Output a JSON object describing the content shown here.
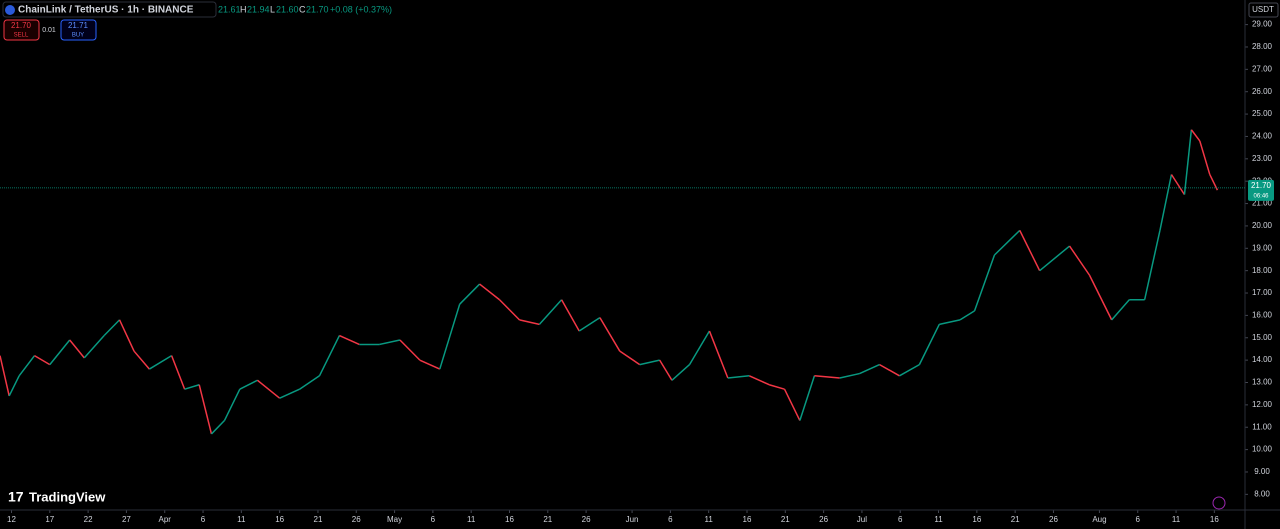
{
  "toolbar": {
    "symbol": "ChainLink / TetherUS · 1h · BINANCE",
    "open": "21.61",
    "high_label": "H",
    "high": "21.94",
    "low_label": "L",
    "low": "21.60",
    "close_label": "C",
    "close": "21.70",
    "change": "+0.08 (+0.37%)",
    "sell_price": "21.70",
    "sell": "SELL",
    "spread": "0.01",
    "buy_price": "21.71",
    "buy": "BUY",
    "currency": "USDT",
    "countdown": "06:46",
    "brand": "TradingView"
  },
  "chart_data": {
    "type": "line",
    "up_color": "#089981",
    "down_color": "#f23645",
    "x": [
      -1.5,
      -0.3,
      1,
      3,
      5,
      7.6,
      9.5,
      12.1,
      14.1,
      16,
      18,
      20.9,
      22.6,
      24.5,
      26.1,
      27.8,
      29.8,
      32.1,
      35,
      37.6,
      40.2,
      42.8,
      45.4,
      48,
      50.7,
      53.3,
      55.9,
      58.5,
      61.1,
      63.7,
      66.3,
      68.9,
      71.8,
      74.1,
      76.8,
      79.4,
      82,
      84.6,
      86.2,
      88.5,
      91.1,
      93.5,
      96.3,
      98.9,
      100.9,
      102.9,
      104.8,
      108.1,
      110.7,
      113.3,
      115.9,
      118.5,
      121.1,
      123.8,
      125.7,
      128.3,
      131.6,
      134.2,
      138.1,
      140.7,
      143.6,
      145.9,
      147.9,
      149.9,
      151.4,
      153.1,
      154,
      155.1,
      156.4,
      157.4
    ],
    "values": [
      14.2,
      12.4,
      13.3,
      14.2,
      13.8,
      14.9,
      14.1,
      15.1,
      15.8,
      14.4,
      13.6,
      14.2,
      12.7,
      12.9,
      10.7,
      11.3,
      12.7,
      13.1,
      12.3,
      12.7,
      13.3,
      15.1,
      14.7,
      14.7,
      14.9,
      14.0,
      13.6,
      16.5,
      17.4,
      16.7,
      15.8,
      15.6,
      16.7,
      15.3,
      15.9,
      14.4,
      13.8,
      14.0,
      13.1,
      13.8,
      15.3,
      13.2,
      13.3,
      12.9,
      12.7,
      11.3,
      13.3,
      13.2,
      13.4,
      13.8,
      13.3,
      13.8,
      15.6,
      15.8,
      16.2,
      18.7,
      19.8,
      18.0,
      19.1,
      17.8,
      15.8,
      16.7,
      16.7,
      19.8,
      22.3,
      21.4,
      24.3,
      23.8,
      22.3,
      21.6
    ],
    "last_price": {
      "value": 21.7,
      "label": "21.70"
    },
    "xlim": [
      -1.5,
      161
    ],
    "xticks": [
      {
        "value": 0,
        "label": "12"
      },
      {
        "value": 5,
        "label": "17"
      },
      {
        "value": 10,
        "label": "22"
      },
      {
        "value": 15,
        "label": "27"
      },
      {
        "value": 20,
        "label": "Apr"
      },
      {
        "value": 25,
        "label": "6"
      },
      {
        "value": 30,
        "label": "11"
      },
      {
        "value": 35,
        "label": "16"
      },
      {
        "value": 40,
        "label": "21"
      },
      {
        "value": 45,
        "label": "26"
      },
      {
        "value": 50,
        "label": "May"
      },
      {
        "value": 55,
        "label": "6"
      },
      {
        "value": 60,
        "label": "11"
      },
      {
        "value": 65,
        "label": "16"
      },
      {
        "value": 70,
        "label": "21"
      },
      {
        "value": 75,
        "label": "26"
      },
      {
        "value": 81,
        "label": "Jun"
      },
      {
        "value": 86,
        "label": "6"
      },
      {
        "value": 91,
        "label": "11"
      },
      {
        "value": 96,
        "label": "16"
      },
      {
        "value": 101,
        "label": "21"
      },
      {
        "value": 106,
        "label": "26"
      },
      {
        "value": 111,
        "label": "Jul"
      },
      {
        "value": 116,
        "label": "6"
      },
      {
        "value": 121,
        "label": "11"
      },
      {
        "value": 126,
        "label": "16"
      },
      {
        "value": 131,
        "label": "21"
      },
      {
        "value": 136,
        "label": "26"
      },
      {
        "value": 142,
        "label": "Aug"
      },
      {
        "value": 147,
        "label": "6"
      },
      {
        "value": 152,
        "label": "11"
      },
      {
        "value": 157,
        "label": "16"
      }
    ],
    "ylim": [
      7.3,
      30.1
    ],
    "yticks": [
      {
        "value": 8,
        "label": "8.00"
      },
      {
        "value": 9,
        "label": "9.00"
      },
      {
        "value": 10,
        "label": "10.00"
      },
      {
        "value": 11,
        "label": "11.00"
      },
      {
        "value": 12,
        "label": "12.00"
      },
      {
        "value": 13,
        "label": "13.00"
      },
      {
        "value": 14,
        "label": "14.00"
      },
      {
        "value": 15,
        "label": "15.00"
      },
      {
        "value": 16,
        "label": "16.00"
      },
      {
        "value": 17,
        "label": "17.00"
      },
      {
        "value": 18,
        "label": "18.00"
      },
      {
        "value": 19,
        "label": "19.00"
      },
      {
        "value": 20,
        "label": "20.00"
      },
      {
        "value": 21,
        "label": "21.00"
      },
      {
        "value": 22,
        "label": "22.00"
      },
      {
        "value": 23,
        "label": "23.00"
      },
      {
        "value": 24,
        "label": "24.00"
      },
      {
        "value": 25,
        "label": "25.00"
      },
      {
        "value": 26,
        "label": "26.00"
      },
      {
        "value": 27,
        "label": "27.00"
      },
      {
        "value": 28,
        "label": "28.00"
      },
      {
        "value": 29,
        "label": "29.00"
      }
    ]
  }
}
